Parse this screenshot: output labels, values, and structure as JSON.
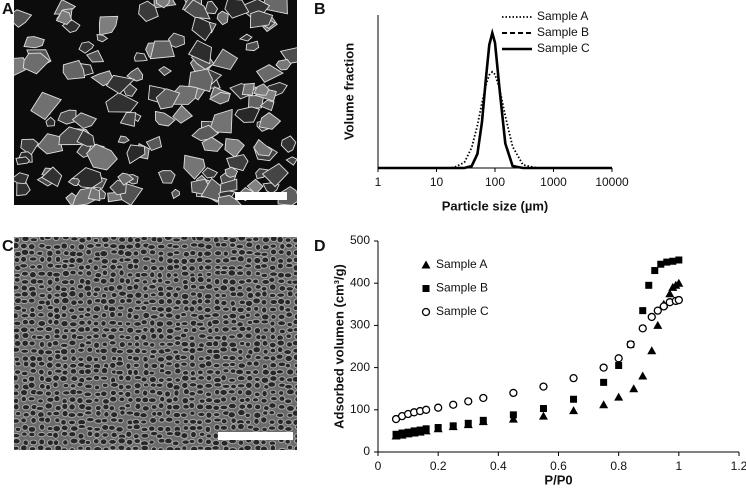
{
  "panel_labels": [
    "A",
    "B",
    "C",
    "D"
  ],
  "chart_data": [
    {
      "type": "line",
      "xlabel": "Particle size (µm)",
      "ylabel": "Volume fraction",
      "xscale": "log",
      "xlim": [
        1,
        10000
      ],
      "xticks": [
        1,
        10,
        100,
        1000,
        10000
      ],
      "ylim": [
        0,
        9.07
      ],
      "legend": "upper right",
      "grid": false,
      "x": [
        1,
        10,
        15,
        20,
        30,
        40,
        50,
        60,
        70,
        80,
        90,
        100,
        120,
        150,
        200,
        300,
        500,
        1000,
        10000
      ],
      "series": [
        {
          "name": "Sample A",
          "color": "#000000",
          "dash": "dotted",
          "values": [
            0,
            0,
            0,
            0.03,
            0.33,
            1.21,
            2.52,
            3.87,
            4.91,
            5.52,
            5.7,
            5.55,
            4.69,
            3.08,
            1.27,
            0.19,
            0.01,
            0,
            0
          ]
        },
        {
          "name": "Sample B",
          "color": "#000000",
          "dash": "dashed",
          "values": [
            0,
            0,
            0,
            0,
            0.01,
            0.13,
            0.88,
            2.8,
            5.35,
            7.3,
            7.95,
            7.45,
            4.7,
            1.5,
            0.14,
            0,
            0,
            0,
            0
          ]
        },
        {
          "name": "Sample C",
          "color": "#000000",
          "dash": "solid",
          "values": [
            0,
            0,
            0,
            0,
            0,
            0.11,
            0.83,
            2.73,
            5.3,
            7.31,
            8.0,
            7.43,
            4.65,
            1.45,
            0.12,
            0,
            0,
            0,
            0
          ]
        }
      ]
    },
    {
      "type": "scatter",
      "xlabel": "P/P0",
      "ylabel": "Adsorbed volumen (cm³/g)",
      "xlim": [
        0,
        1.2
      ],
      "xticks": [
        0,
        0.2,
        0.4,
        0.6,
        0.8,
        1,
        1.2
      ],
      "ylim": [
        0,
        500
      ],
      "yticks": [
        0,
        100,
        200,
        300,
        400,
        500
      ],
      "legend": "upper left",
      "grid": false,
      "series": [
        {
          "name": "Sample A",
          "color": "#000000",
          "marker": "triangle",
          "x": [
            0.06,
            0.08,
            0.1,
            0.12,
            0.14,
            0.16,
            0.2,
            0.25,
            0.3,
            0.35,
            0.45,
            0.55,
            0.65,
            0.75,
            0.8,
            0.85,
            0.88,
            0.91,
            0.93,
            0.95,
            0.97,
            0.98,
            0.99,
            1.0
          ],
          "values": [
            38,
            40,
            43,
            45,
            47,
            50,
            55,
            60,
            65,
            72,
            78,
            85,
            98,
            112,
            130,
            150,
            180,
            240,
            300,
            350,
            375,
            390,
            395,
            400
          ]
        },
        {
          "name": "Sample B",
          "color": "#000000",
          "marker": "square",
          "x": [
            0.06,
            0.08,
            0.1,
            0.12,
            0.14,
            0.16,
            0.2,
            0.25,
            0.3,
            0.35,
            0.45,
            0.55,
            0.65,
            0.75,
            0.8,
            0.84,
            0.88,
            0.9,
            0.92,
            0.94,
            0.96,
            0.98,
            1.0
          ],
          "values": [
            42,
            45,
            47,
            50,
            52,
            55,
            58,
            62,
            68,
            75,
            88,
            103,
            125,
            165,
            205,
            255,
            335,
            395,
            430,
            445,
            450,
            452,
            455
          ]
        },
        {
          "name": "Sample C",
          "color": "#000000",
          "marker": "circle-open",
          "x": [
            0.06,
            0.08,
            0.1,
            0.12,
            0.14,
            0.16,
            0.2,
            0.25,
            0.3,
            0.35,
            0.45,
            0.55,
            0.65,
            0.75,
            0.8,
            0.84,
            0.88,
            0.91,
            0.93,
            0.95,
            0.97,
            0.99,
            1.0
          ],
          "values": [
            78,
            85,
            90,
            94,
            97,
            100,
            105,
            112,
            120,
            128,
            140,
            155,
            175,
            200,
            222,
            255,
            293,
            320,
            335,
            345,
            355,
            358,
            360
          ]
        }
      ]
    }
  ]
}
